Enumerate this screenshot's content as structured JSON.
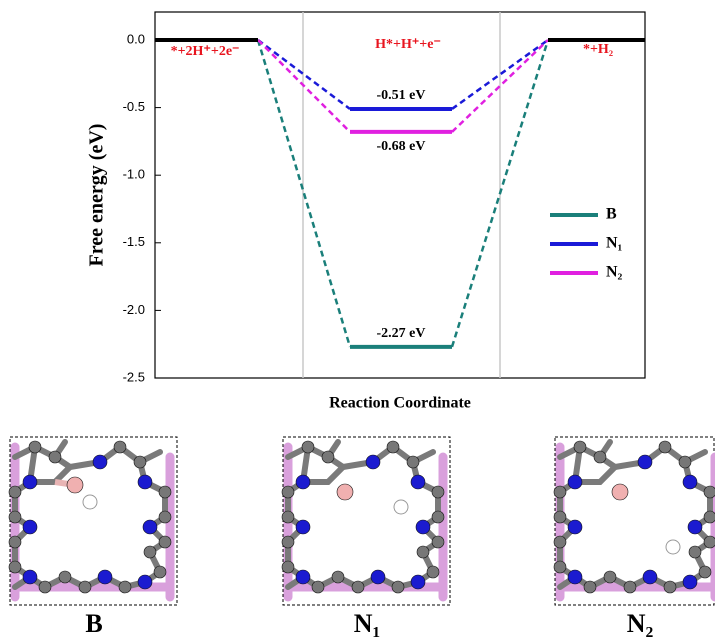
{
  "chart_data": {
    "type": "energy-levels",
    "ylabel": "Free energy (eV)",
    "xlabel": "Reaction Coordinate",
    "categories": [
      "*+2H⁺+2e⁻",
      "H*+H⁺+e⁻",
      "*+H₂"
    ],
    "category_color": "#e8141e",
    "endpoint_color": "#000000",
    "ylim": [
      -2.5,
      0.207
    ],
    "yticks": [
      {
        "value": 0,
        "label": "0.0"
      },
      -0.5,
      {
        "value": -1,
        "label": "-1.0"
      },
      -1.5,
      {
        "value": -2,
        "label": "-2.0"
      },
      -2.5
    ],
    "series": [
      {
        "name": "B",
        "color": "#1a7f7a",
        "values": [
          0,
          -2.27,
          0
        ],
        "value_labels": [
          null,
          "-2.27 eV",
          null
        ]
      },
      {
        "name": "N₁",
        "color": "#1a1ad8",
        "values": [
          0,
          -0.51,
          0
        ],
        "value_labels": [
          null,
          "-0.51 eV",
          null
        ]
      },
      {
        "name": "N₂",
        "color": "#e020e0",
        "values": [
          0,
          -0.68,
          0
        ],
        "value_labels": [
          null,
          "-0.68 eV",
          null
        ]
      }
    ],
    "legend": "right"
  },
  "structures": {
    "labels": [
      "B",
      "N₁",
      "N₂"
    ]
  }
}
